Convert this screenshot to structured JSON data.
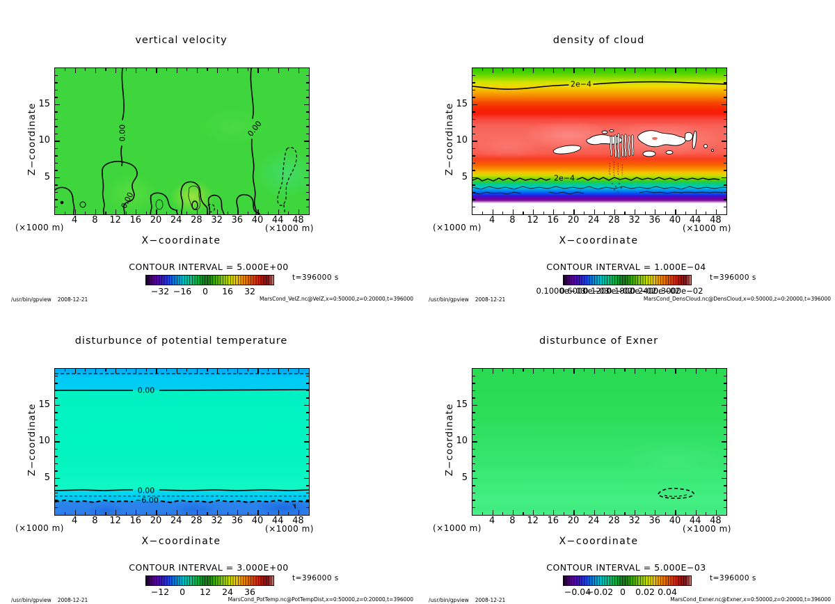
{
  "footer": {
    "command": "/usr/bin/gpview",
    "date": "2008-12-21"
  },
  "panels": [
    {
      "id": "vertical-velocity",
      "title": "vertical velocity",
      "x_axis_label": "X−coordinate",
      "y_axis_label": "Z−coordinate",
      "axis_unit": "(×1000 m)",
      "x_ticks": [
        4,
        8,
        12,
        16,
        20,
        24,
        28,
        32,
        36,
        40,
        44,
        48
      ],
      "y_ticks": [
        5,
        10,
        15
      ],
      "contour_interval_label": "CONTOUR INTERVAL = 5.000E+00",
      "colorbar_ticks": [
        "−32",
        "−16",
        "0",
        "16",
        "32"
      ],
      "contour_labels": [
        "0.00",
        "0.00",
        "0.00"
      ],
      "time_label": "t=396000 s",
      "file_label": "MarsCond_VelZ.nc@VelZ,x=0:50000,z=0:20000,t=396000"
    },
    {
      "id": "density-of-cloud",
      "title": "density of cloud",
      "x_axis_label": "X−coordinate",
      "y_axis_label": "Z−coordinate",
      "axis_unit": "(×1000 m)",
      "x_ticks": [
        4,
        8,
        12,
        16,
        20,
        24,
        28,
        32,
        36,
        40,
        44,
        48
      ],
      "y_ticks": [
        5,
        10,
        15
      ],
      "contour_interval_label": "CONTOUR INTERVAL = 1.000E−04",
      "colorbar_ticks": [
        "0.1000e−03",
        "0.6000e−03",
        "0.1200e−02",
        "0.1800e−02",
        "0.2400e−02",
        "0.3000e−02"
      ],
      "contour_labels": [
        "2e−4",
        "2e−4"
      ],
      "time_label": "t=396000 s",
      "file_label": "MarsCond_DensCloud.nc@DensCloud,x=0:50000,z=0:20000,t=396000"
    },
    {
      "id": "disturbance-of-potential-temperature",
      "title": "disturbunce of potential temperature",
      "x_axis_label": "X−coordinate",
      "y_axis_label": "Z−coordinate",
      "axis_unit": "(×1000 m)",
      "x_ticks": [
        4,
        8,
        12,
        16,
        20,
        24,
        28,
        32,
        36,
        40,
        44,
        48
      ],
      "y_ticks": [
        5,
        10,
        15
      ],
      "contour_interval_label": "CONTOUR INTERVAL = 3.000E+00",
      "colorbar_ticks": [
        "−12",
        "0",
        "12",
        "24",
        "36"
      ],
      "contour_labels": [
        "0.00",
        "0.00",
        "−6.00"
      ],
      "time_label": "t=396000 s",
      "file_label": "MarsCond_PotTemp.nc@PotTempDist,x=0:50000,z=0:20000,t=396000"
    },
    {
      "id": "disturbance-of-exner",
      "title": "disturbunce of Exner",
      "x_axis_label": "X−coordinate",
      "y_axis_label": "Z−coordinate",
      "axis_unit": "(×1000 m)",
      "x_ticks": [
        4,
        8,
        12,
        16,
        20,
        24,
        28,
        32,
        36,
        40,
        44,
        48
      ],
      "y_ticks": [
        5,
        10,
        15
      ],
      "contour_interval_label": "CONTOUR INTERVAL = 5.000E−03",
      "colorbar_ticks": [
        "−0.04",
        "−0.02",
        "0",
        "0.02",
        "0.04"
      ],
      "contour_labels": [],
      "time_label": "t=396000 s",
      "file_label": "MarsCond_Exner.nc@Exner,x=0:50000,z=0:20000,t=396000"
    }
  ],
  "chart_data": [
    {
      "type": "heatmap",
      "subtype": "filled-contour-xz-section",
      "title": "vertical velocity",
      "xlabel": "X−coordinate (×1000 m)",
      "ylabel": "Z−coordinate (×1000 m)",
      "x_range": [
        0,
        50
      ],
      "z_range": [
        0,
        20
      ],
      "contour_interval": 5.0,
      "colorbar_range": [
        -44,
        44
      ],
      "colorbar_tick_values": [
        -32,
        -16,
        0,
        16,
        32
      ],
      "labeled_contour_values": [
        0.0
      ],
      "time_s": 396000,
      "description": "Field mostly near zero (uniform green). Zero contours descend from the top edge near x=13 and x=40. Small closed positive cells (amplitude ~5) hug the bottom below z~6 near x=2, 12, 20, 27, 31, 38. Dashed negative cell near x=45 between z=2 and z=8."
    },
    {
      "type": "heatmap",
      "subtype": "filled-contour-xz-section",
      "title": "density of cloud",
      "xlabel": "X−coordinate (×1000 m)",
      "ylabel": "Z−coordinate (×1000 m)",
      "x_range": [
        0,
        50
      ],
      "z_range": [
        0,
        20
      ],
      "contour_interval": 0.0001,
      "colorbar_range": [
        0.0001,
        0.003
      ],
      "colorbar_tick_values": [
        0.0001,
        0.0006,
        0.0012,
        0.0018,
        0.0024,
        0.003
      ],
      "labeled_contour_values": [
        0.0002,
        0.0002
      ],
      "labeled_contour_heights_z": [
        17.7,
        4.8
      ],
      "time_s": 396000,
      "z_profile": {
        "z": [
          19.5,
          18,
          16.5,
          15,
          13,
          10,
          8,
          6,
          5,
          4,
          3.5,
          3,
          2.5,
          1.5
        ],
        "value": [
          0.0001,
          0.0002,
          0.0008,
          0.0014,
          0.0022,
          0.0028,
          0.0027,
          0.0024,
          0.0012,
          0.0006,
          0.0004,
          0.0003,
          0.0002,
          0.0
        ]
      },
      "description": "Horizontally stratified cloud density: low (green) aloft, 2e−4 contour near z=17.7, maximum (red/pink with white saturated holes near z=8–10), decreasing through orange/green/cyan/blue/purple bands below z=5, empty (white) below z~1.5."
    },
    {
      "type": "heatmap",
      "subtype": "filled-contour-xz-section",
      "title": "disturbunce of potential temperature",
      "xlabel": "X−coordinate (×1000 m)",
      "ylabel": "Z−coordinate (×1000 m)",
      "x_range": [
        0,
        50
      ],
      "z_range": [
        0,
        20
      ],
      "contour_interval": 3.0,
      "colorbar_range": [
        -21,
        45
      ],
      "colorbar_tick_values": [
        -12,
        0,
        12,
        24,
        36
      ],
      "labeled_contour_values": [
        0.0,
        0.0,
        -6.0
      ],
      "labeled_contour_heights_z": [
        17.1,
        3.4,
        1.9
      ],
      "time_s": 396000,
      "description": "Layered field: cyan (negative) band above z=17 with dashed contour near z=19.3, near-zero teal interior 3.4<z<17.1, 0.00 contours at z=17.1 and z=3.4, dashed −6.00 contour near z=1.9, blue (~−9 to −12) layer below z=2."
    },
    {
      "type": "heatmap",
      "subtype": "filled-contour-xz-section",
      "title": "disturbunce of Exner",
      "xlabel": "X−coordinate (×1000 m)",
      "ylabel": "Z−coordinate (×1000 m)",
      "x_range": [
        0,
        50
      ],
      "z_range": [
        0,
        20
      ],
      "contour_interval": 0.005,
      "colorbar_range": [
        -0.05,
        0.05
      ],
      "colorbar_tick_values": [
        -0.04,
        -0.02,
        0,
        0.02,
        0.04
      ],
      "labeled_contour_values": [],
      "time_s": 396000,
      "description": "Nearly uniform near-zero field (green, slightly brighter toward the ground). One small dashed negative contour cell near x=37–44, z=3.5."
    }
  ]
}
